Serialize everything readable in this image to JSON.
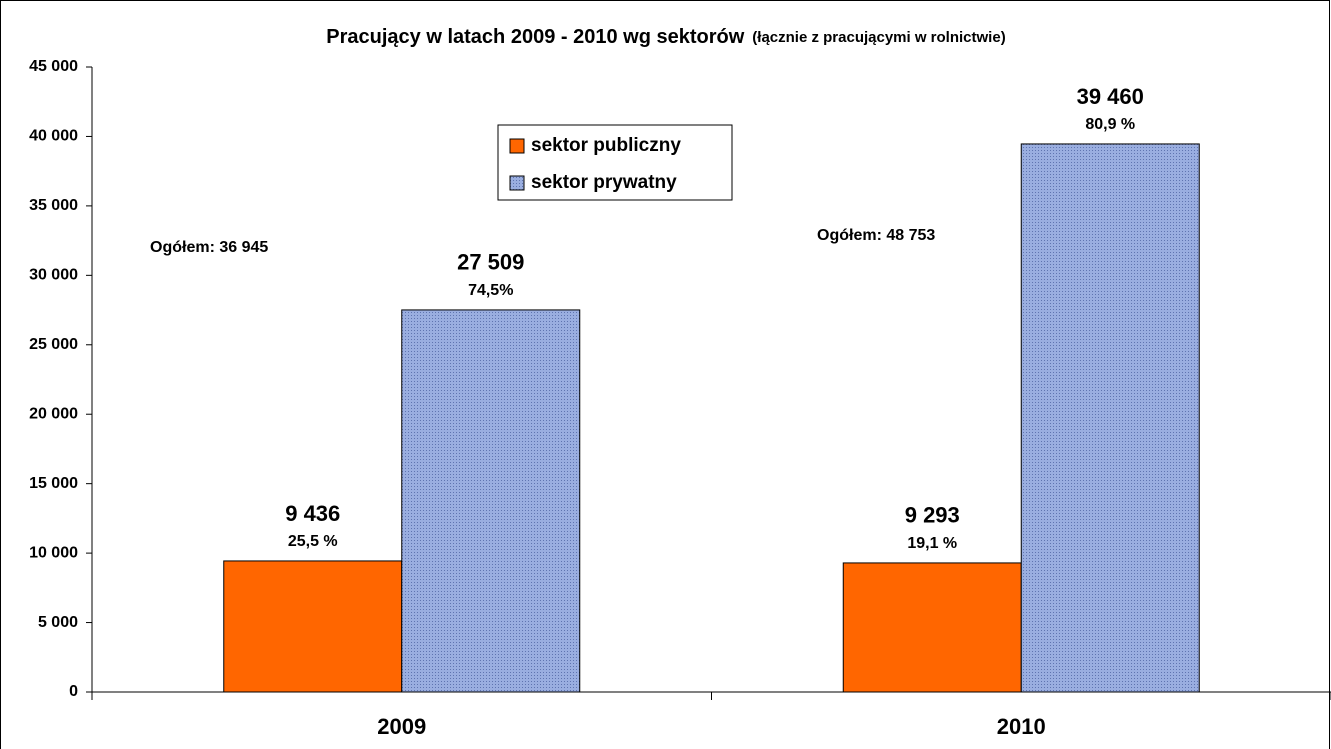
{
  "chart_data": {
    "type": "bar",
    "title": "Pracujący w latach 2009 - 2010 wg sektorów",
    "subtitle": "(łącznie z pracującymi w rolnictwie)",
    "categories": [
      "2009",
      "2010"
    ],
    "series": [
      {
        "name": "sektor publiczny",
        "color": "#ff6600",
        "values": [
          9436,
          9293
        ],
        "value_labels": [
          "9 436",
          "9 293"
        ],
        "percent_labels": [
          "25,5 %",
          "19,1 %"
        ]
      },
      {
        "name": "sektor prywatny",
        "color": "#8c9fd6",
        "values": [
          27509,
          39460
        ],
        "value_labels": [
          "27 509",
          "39 460"
        ],
        "percent_labels": [
          "74,5%",
          "80,9 %"
        ]
      }
    ],
    "annotations": [
      "Ogółem: 36 945",
      "Ogółem: 48 753"
    ],
    "ylim": [
      0,
      45000
    ],
    "yticks": [
      0,
      {
        "value": 5000,
        "label": "5 000"
      },
      {
        "value": 10000,
        "label": "10 000"
      },
      {
        "value": 15000,
        "label": "15 000"
      },
      {
        "value": 20000,
        "label": "20 000"
      },
      {
        "value": 25000,
        "label": "25 000"
      },
      {
        "value": 30000,
        "label": "30 000"
      },
      {
        "value": 35000,
        "label": "35 000"
      },
      {
        "value": 40000,
        "label": "40 000"
      },
      {
        "value": 45000,
        "label": "45 000"
      }
    ],
    "grid": false,
    "legend": "top-center"
  }
}
